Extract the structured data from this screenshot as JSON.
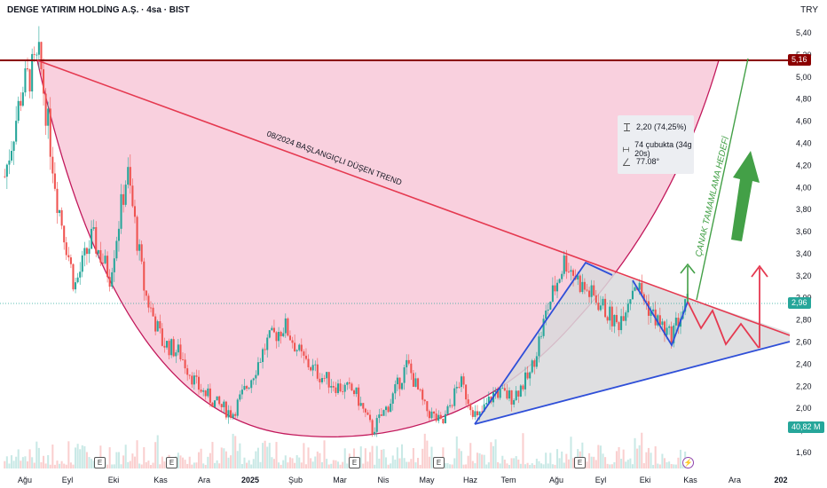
{
  "header": {
    "symbol_title": "DENGE YATIRIM HOLDİNG A.Ş. · 4sa · BIST",
    "currency": "TRY"
  },
  "measure_box": {
    "price_change": "2,20 (74,25%)",
    "bars": "74 çubukta (34g 20s)",
    "angle": "77.08°"
  },
  "price_tags": {
    "resistance": "5,16",
    "current": "2,96",
    "volume": "40,82 M"
  },
  "annotations": {
    "trend_label": "08/2024 BAŞLANGIÇLI DÜŞEN TREND",
    "target_label": "ÇANAK TAMAMLAMA HEDEFİ"
  },
  "earnings_markers": [
    "E",
    "E",
    "E",
    "E",
    "E",
    "⚡"
  ],
  "colors": {
    "cup_fill": "#f8c8d8",
    "cup_line": "#c2185b",
    "trend_line": "#e53950",
    "blue_line": "#2f4fd8",
    "up_green": "#26a69a",
    "down_red": "#ef5350",
    "target_green": "#43a047",
    "resistance": "#8b0000"
  },
  "chart_data": {
    "type": "candlestick",
    "title": "DENGE YATIRIM HOLDİNG A.Ş. · 4sa · BIST",
    "y_axis": {
      "ticks": [
        "5,40",
        "5,20",
        "5,00",
        "4,80",
        "4,60",
        "4,40",
        "4,20",
        "4,00",
        "3,80",
        "3,60",
        "3,40",
        "3,20",
        "3,00",
        "2,80",
        "2,60",
        "2,40",
        "2,20",
        "2,00",
        "1,80",
        "1,60"
      ],
      "range": [
        1.6,
        5.4
      ],
      "position": "right"
    },
    "x_axis": {
      "ticks": [
        "Ağu",
        "Eyl",
        "Eki",
        "Kas",
        "Ara",
        "2025",
        "Şub",
        "Mar",
        "Nis",
        "May",
        "Haz",
        "Tem",
        "Ağu",
        "Eyl",
        "Eki",
        "Kas",
        "Ara",
        "202"
      ]
    },
    "price_path": [
      [
        "Ağu",
        4.1
      ],
      [
        "Ağu",
        4.9
      ],
      [
        "Ağu",
        5.16
      ],
      [
        "Eyl",
        3.9
      ],
      [
        "Eyl",
        3.1
      ],
      [
        "Eyl",
        3.55
      ],
      [
        "Eki",
        3.2
      ],
      [
        "Eki",
        4.15
      ],
      [
        "Eki",
        3.05
      ],
      [
        "Eki",
        2.6
      ],
      [
        "Kas",
        2.5
      ],
      [
        "Kas",
        2.2
      ],
      [
        "Kas",
        2.05
      ],
      [
        "Ara",
        1.95
      ],
      [
        "Ara",
        2.25
      ],
      [
        "2025",
        2.6
      ],
      [
        "2025",
        2.75
      ],
      [
        "Şub",
        2.45
      ],
      [
        "Şub",
        2.3
      ],
      [
        "Mar",
        2.2
      ],
      [
        "Mar",
        2.15
      ],
      [
        "Nis",
        1.8
      ],
      [
        "Nis",
        2.05
      ],
      [
        "Nis",
        2.4
      ],
      [
        "May",
        2.0
      ],
      [
        "May",
        1.85
      ],
      [
        "May",
        2.25
      ],
      [
        "Haz",
        1.9
      ],
      [
        "Haz",
        2.15
      ],
      [
        "Tem",
        2.1
      ],
      [
        "Tem",
        2.3
      ],
      [
        "Ağu",
        2.9
      ],
      [
        "Ağu",
        3.35
      ],
      [
        "Ağu",
        3.1
      ],
      [
        "Eyl",
        2.95
      ],
      [
        "Eyl",
        2.75
      ],
      [
        "Eki",
        3.15
      ],
      [
        "Eki",
        2.85
      ],
      [
        "Eki",
        2.65
      ],
      [
        "Kas",
        2.96
      ]
    ],
    "levels": {
      "resistance": 5.16,
      "current": 2.96
    },
    "volume_last": "40,82 M",
    "grid": false,
    "legend": "none"
  }
}
